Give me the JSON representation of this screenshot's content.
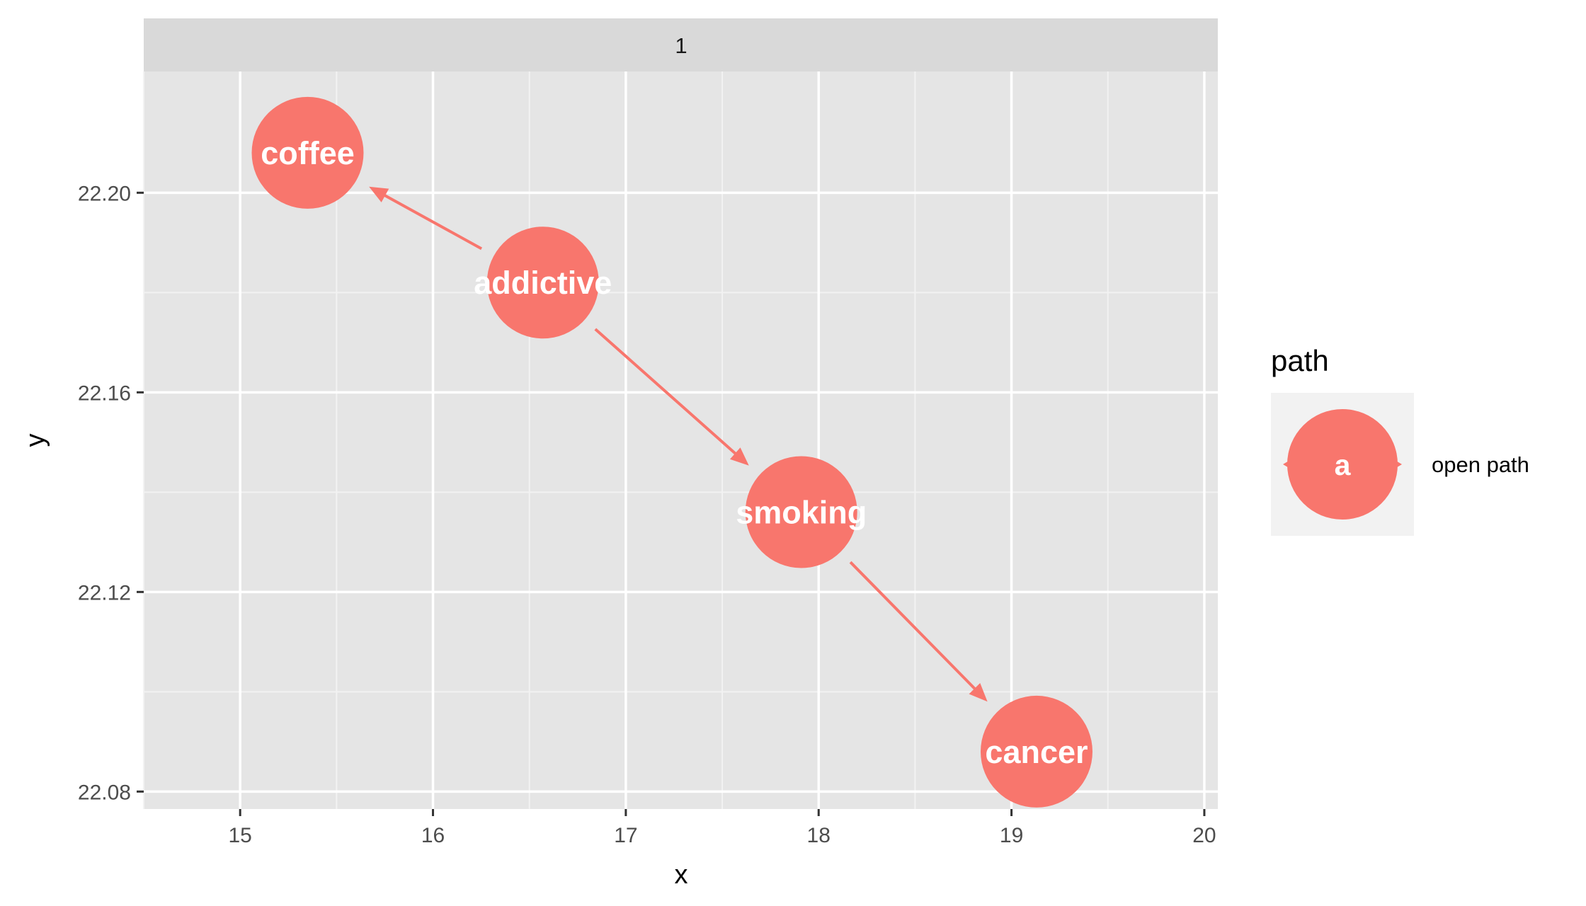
{
  "chart_data": {
    "type": "dag",
    "facet_strip": "1",
    "xlabel": "x",
    "ylabel": "y",
    "xlim": [
      14.5,
      20.07
    ],
    "ylim": [
      22.0765,
      22.2243
    ],
    "xticks": [
      15,
      16,
      17,
      18,
      19,
      20
    ],
    "yticks": [
      22.08,
      22.12,
      22.16,
      22.2
    ],
    "ytick_labels": [
      "22.08",
      "22.12",
      "22.16",
      "22.20"
    ],
    "grid": true,
    "nodes": [
      {
        "name": "coffee",
        "x": 15.35,
        "y": 22.208
      },
      {
        "name": "addictive",
        "x": 16.57,
        "y": 22.182
      },
      {
        "name": "smoking",
        "x": 17.91,
        "y": 22.136
      },
      {
        "name": "cancer",
        "x": 19.13,
        "y": 22.088
      }
    ],
    "edges": [
      {
        "from": "addictive",
        "to": "coffee"
      },
      {
        "from": "addictive",
        "to": "smoking"
      },
      {
        "from": "smoking",
        "to": "cancer"
      }
    ],
    "node_color": "#F8766D",
    "legend": {
      "title": "path",
      "key_label": "a",
      "entries": [
        "open path"
      ],
      "placement": "right"
    }
  }
}
